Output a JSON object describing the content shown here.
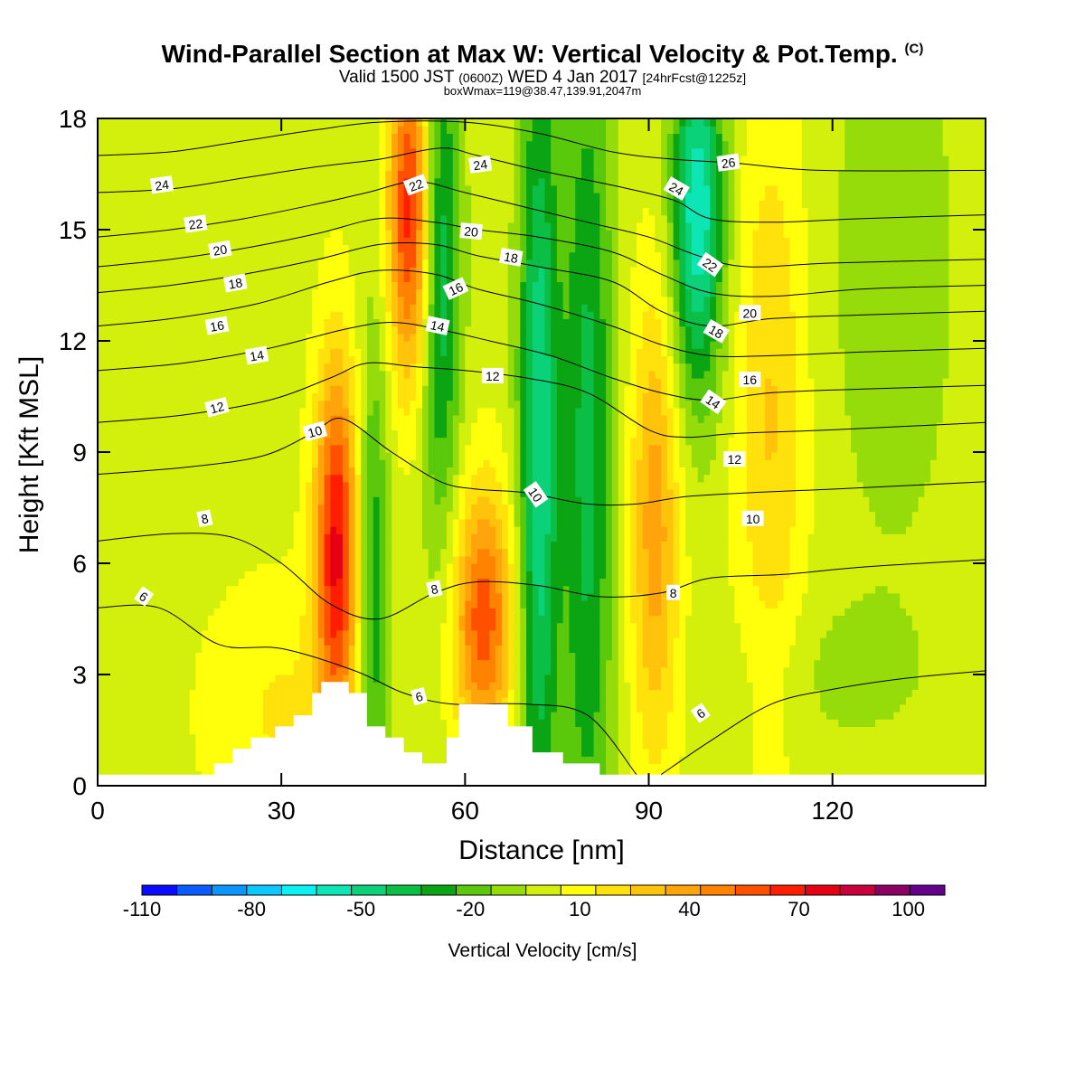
{
  "header": {
    "title": "Wind-Parallel Section at Max W: Vertical Velocity & Pot.Temp.",
    "title_units": "(C)",
    "valid_pre": "Valid 1500 JST",
    "valid_z": "(0600Z)",
    "valid_post": "WED 4 Jan 2017",
    "forecast": "[24hrFcst@1225z]",
    "box_info": "boxWmax=119@38.47,139.91,2047m"
  },
  "chart_data": {
    "type": "heatmap",
    "xlabel": "Distance [nm]",
    "ylabel": "Height [Kft MSL]",
    "xlim": [
      0,
      145
    ],
    "ylim": [
      0,
      18
    ],
    "x_ticks": [
      0,
      30,
      60,
      90,
      120
    ],
    "y_ticks": [
      0,
      3,
      6,
      9,
      12,
      15,
      18
    ],
    "x_tick_labels": [
      "0",
      "30",
      "60",
      "90",
      "120"
    ],
    "y_tick_labels": [
      "0",
      "3",
      "6",
      "9",
      "12",
      "15",
      "18"
    ],
    "colorbar": {
      "title": "Vertical Velocity [cm/s]",
      "boundaries": [
        -110,
        -100,
        -90,
        -80,
        -70,
        -60,
        -50,
        -40,
        -30,
        -20,
        -10,
        0,
        10,
        20,
        30,
        40,
        50,
        60,
        70,
        80,
        90,
        100,
        110
      ],
      "colors": [
        "#0b0bff",
        "#0b5cff",
        "#0b96ff",
        "#0bc8ff",
        "#0bf0f0",
        "#0be6b4",
        "#0bd278",
        "#0bbe46",
        "#0ba514",
        "#5ac80b",
        "#96dc0b",
        "#d2f00b",
        "#ffff0b",
        "#ffe10b",
        "#ffc30b",
        "#ffa50b",
        "#ff8200",
        "#ff5000",
        "#ff1e00",
        "#e60014",
        "#c8003c",
        "#8c0064",
        "#64008c"
      ],
      "tick_values": [
        -110,
        -80,
        -50,
        -20,
        10,
        40,
        70,
        100
      ],
      "tick_labels": [
        "-110",
        "-80",
        "-50",
        "-20",
        "10",
        "40",
        "70",
        "100"
      ]
    },
    "w_features": [
      {
        "x": 39,
        "y": 6.5,
        "sx": 2.5,
        "sy": 3.5,
        "w": 75
      },
      {
        "x": 51,
        "y": 15.5,
        "sx": 2.5,
        "sy": 3.2,
        "w": 70
      },
      {
        "x": 63,
        "y": 4.5,
        "sx": 3.5,
        "sy": 2.5,
        "w": 60
      },
      {
        "x": 91,
        "y": 7,
        "sx": 2.8,
        "sy": 4.5,
        "w": 40
      },
      {
        "x": 110,
        "y": 10,
        "sx": 4,
        "sy": 6,
        "w": 25
      },
      {
        "x": 30,
        "y": 2,
        "sx": 9,
        "sy": 2.5,
        "w": 15
      },
      {
        "x": 45,
        "y": 5,
        "sx": 1.8,
        "sy": 5,
        "w": -35
      },
      {
        "x": 56,
        "y": 14,
        "sx": 2.3,
        "sy": 5,
        "w": -45
      },
      {
        "x": 72,
        "y": 9,
        "sx": 2.3,
        "sy": 8,
        "w": -55
      },
      {
        "x": 80,
        "y": 9,
        "sx": 3,
        "sy": 9,
        "w": -40
      },
      {
        "x": 98,
        "y": 15.5,
        "sx": 3,
        "sy": 3.5,
        "w": -65
      },
      {
        "x": 130,
        "y": 14,
        "sx": 8,
        "sy": 6,
        "w": -12
      },
      {
        "x": 120,
        "y": 3,
        "sx": 12,
        "sy": 1.5,
        "w": -8
      }
    ],
    "terrain": [
      [
        0,
        0.3
      ],
      [
        19,
        0.3
      ],
      [
        19,
        0.6
      ],
      [
        22,
        0.6
      ],
      [
        22,
        1.0
      ],
      [
        25,
        1.0
      ],
      [
        25,
        1.3
      ],
      [
        29,
        1.3
      ],
      [
        29,
        1.6
      ],
      [
        32,
        1.6
      ],
      [
        32,
        1.9
      ],
      [
        35,
        1.9
      ],
      [
        35,
        2.5
      ],
      [
        36.5,
        2.5
      ],
      [
        36.5,
        2.8
      ],
      [
        41,
        2.8
      ],
      [
        41,
        2.5
      ],
      [
        44,
        2.5
      ],
      [
        44,
        1.6
      ],
      [
        47,
        1.6
      ],
      [
        47,
        1.3
      ],
      [
        50,
        1.3
      ],
      [
        50,
        0.9
      ],
      [
        53,
        0.9
      ],
      [
        53,
        0.6
      ],
      [
        57,
        0.6
      ],
      [
        57,
        1.3
      ],
      [
        59,
        1.3
      ],
      [
        59,
        2.2
      ],
      [
        67,
        2.2
      ],
      [
        67,
        1.6
      ],
      [
        71,
        1.6
      ],
      [
        71,
        0.9
      ],
      [
        76,
        0.9
      ],
      [
        76,
        0.6
      ],
      [
        82,
        0.6
      ],
      [
        82,
        0.3
      ],
      [
        145,
        0.3
      ]
    ],
    "theta_contours": [
      {
        "value": 6,
        "pts": [
          [
            0,
            4.8
          ],
          [
            10,
            4.8
          ],
          [
            20,
            3.8
          ],
          [
            30,
            3.7
          ],
          [
            42,
            3.1
          ],
          [
            50,
            2.5
          ],
          [
            58,
            2.2
          ],
          [
            70,
            2.2
          ],
          [
            80,
            1.9
          ],
          [
            88,
            0.3
          ]
        ]
      },
      {
        "value": 6,
        "pts": [
          [
            92,
            0.3
          ],
          [
            100,
            1.2
          ],
          [
            110,
            2.2
          ],
          [
            120,
            2.6
          ],
          [
            132,
            2.9
          ],
          [
            145,
            3.1
          ]
        ]
      },
      {
        "value": 8,
        "pts": [
          [
            0,
            6.6
          ],
          [
            12,
            6.8
          ],
          [
            22,
            6.7
          ],
          [
            30,
            6.0
          ],
          [
            38,
            4.9
          ],
          [
            46,
            4.5
          ],
          [
            55,
            5.2
          ],
          [
            62,
            5.5
          ],
          [
            72,
            5.4
          ],
          [
            82,
            5.1
          ],
          [
            92,
            5.2
          ],
          [
            100,
            5.6
          ],
          [
            112,
            5.7
          ],
          [
            125,
            5.9
          ],
          [
            145,
            6.1
          ]
        ]
      },
      {
        "value": 10,
        "pts": [
          [
            0,
            8.4
          ],
          [
            15,
            8.6
          ],
          [
            27,
            8.9
          ],
          [
            35,
            9.5
          ],
          [
            40,
            9.9
          ],
          [
            48,
            9.0
          ],
          [
            56,
            8.2
          ],
          [
            62,
            8.0
          ],
          [
            70,
            7.9
          ],
          [
            80,
            7.6
          ],
          [
            88,
            7.6
          ],
          [
            96,
            7.8
          ],
          [
            106,
            7.9
          ],
          [
            120,
            8.0
          ],
          [
            145,
            8.2
          ]
        ]
      },
      {
        "value": 12,
        "pts": [
          [
            0,
            9.8
          ],
          [
            14,
            10.0
          ],
          [
            28,
            10.4
          ],
          [
            38,
            11.0
          ],
          [
            44,
            11.4
          ],
          [
            52,
            11.3
          ],
          [
            60,
            11.2
          ],
          [
            70,
            11.0
          ],
          [
            80,
            10.6
          ],
          [
            90,
            9.6
          ],
          [
            96,
            9.4
          ],
          [
            104,
            9.5
          ],
          [
            120,
            9.6
          ],
          [
            145,
            9.8
          ]
        ]
      },
      {
        "value": 14,
        "pts": [
          [
            0,
            11.2
          ],
          [
            14,
            11.4
          ],
          [
            28,
            11.8
          ],
          [
            40,
            12.3
          ],
          [
            48,
            12.5
          ],
          [
            56,
            12.3
          ],
          [
            64,
            12.0
          ],
          [
            74,
            11.6
          ],
          [
            84,
            11.0
          ],
          [
            92,
            10.6
          ],
          [
            100,
            10.4
          ],
          [
            110,
            10.6
          ],
          [
            125,
            10.7
          ],
          [
            145,
            10.8
          ]
        ]
      },
      {
        "value": 16,
        "pts": [
          [
            0,
            12.4
          ],
          [
            12,
            12.6
          ],
          [
            26,
            13.0
          ],
          [
            38,
            13.6
          ],
          [
            46,
            13.9
          ],
          [
            55,
            13.8
          ],
          [
            62,
            13.4
          ],
          [
            72,
            13.0
          ],
          [
            84,
            12.4
          ],
          [
            92,
            11.9
          ],
          [
            100,
            11.6
          ],
          [
            110,
            11.6
          ],
          [
            125,
            11.7
          ],
          [
            145,
            11.8
          ]
        ]
      },
      {
        "value": 18,
        "pts": [
          [
            0,
            13.3
          ],
          [
            12,
            13.5
          ],
          [
            24,
            13.8
          ],
          [
            36,
            14.2
          ],
          [
            46,
            14.6
          ],
          [
            55,
            14.6
          ],
          [
            62,
            14.3
          ],
          [
            72,
            14.0
          ],
          [
            84,
            13.6
          ],
          [
            92,
            12.8
          ],
          [
            100,
            12.4
          ],
          [
            110,
            12.6
          ],
          [
            125,
            12.7
          ],
          [
            145,
            12.8
          ]
        ]
      },
      {
        "value": 20,
        "pts": [
          [
            0,
            14.0
          ],
          [
            12,
            14.2
          ],
          [
            24,
            14.5
          ],
          [
            36,
            14.9
          ],
          [
            46,
            15.3
          ],
          [
            55,
            15.2
          ],
          [
            62,
            15.0
          ],
          [
            72,
            14.8
          ],
          [
            84,
            14.4
          ],
          [
            92,
            13.8
          ],
          [
            100,
            13.3
          ],
          [
            110,
            13.2
          ],
          [
            125,
            13.4
          ],
          [
            145,
            13.5
          ]
        ]
      },
      {
        "value": 22,
        "pts": [
          [
            0,
            14.8
          ],
          [
            12,
            15.0
          ],
          [
            24,
            15.3
          ],
          [
            36,
            15.7
          ],
          [
            44,
            16.0
          ],
          [
            52,
            16.3
          ],
          [
            60,
            16.0
          ],
          [
            70,
            15.6
          ],
          [
            80,
            15.2
          ],
          [
            90,
            14.8
          ],
          [
            98,
            14.3
          ],
          [
            106,
            14.0
          ],
          [
            120,
            14.1
          ],
          [
            145,
            14.2
          ]
        ]
      },
      {
        "value": 24,
        "pts": [
          [
            0,
            16.0
          ],
          [
            12,
            16.1
          ],
          [
            24,
            16.4
          ],
          [
            36,
            16.7
          ],
          [
            46,
            16.9
          ],
          [
            56,
            17.2
          ],
          [
            62,
            17.0
          ],
          [
            72,
            16.6
          ],
          [
            84,
            16.2
          ],
          [
            94,
            15.8
          ],
          [
            100,
            15.3
          ],
          [
            110,
            15.2
          ],
          [
            125,
            15.3
          ],
          [
            145,
            15.4
          ]
        ]
      },
      {
        "value": 26,
        "pts": [
          [
            0,
            17.0
          ],
          [
            12,
            17.1
          ],
          [
            24,
            17.4
          ],
          [
            36,
            17.7
          ],
          [
            46,
            17.9
          ],
          [
            60,
            17.9
          ],
          [
            72,
            17.6
          ],
          [
            84,
            17.1
          ],
          [
            94,
            16.9
          ],
          [
            104,
            16.8
          ],
          [
            118,
            16.6
          ],
          [
            145,
            16.6
          ]
        ]
      }
    ],
    "contour_labels": [
      {
        "text": "6",
        "x": 7.5,
        "y": 5.1,
        "rot": 35
      },
      {
        "text": "6",
        "x": 52.5,
        "y": 2.4,
        "rot": -15
      },
      {
        "text": "6",
        "x": 98.5,
        "y": 1.95,
        "rot": -35
      },
      {
        "text": "8",
        "x": 17.5,
        "y": 7.2,
        "rot": -12
      },
      {
        "text": "8",
        "x": 55,
        "y": 5.3,
        "rot": -12
      },
      {
        "text": "8",
        "x": 94,
        "y": 5.2,
        "rot": 0
      },
      {
        "text": "10",
        "x": 35.5,
        "y": 9.55,
        "rot": -15
      },
      {
        "text": "10",
        "x": 71.5,
        "y": 7.85,
        "rot": 55
      },
      {
        "text": "10",
        "x": 107,
        "y": 7.2,
        "rot": 0
      },
      {
        "text": "12",
        "x": 19.5,
        "y": 10.2,
        "rot": -15
      },
      {
        "text": "12",
        "x": 64.5,
        "y": 11.05,
        "rot": 0
      },
      {
        "text": "12",
        "x": 104,
        "y": 8.8,
        "rot": 0
      },
      {
        "text": "14",
        "x": 26,
        "y": 11.6,
        "rot": -10
      },
      {
        "text": "14",
        "x": 55.5,
        "y": 12.4,
        "rot": 12
      },
      {
        "text": "14",
        "x": 100.5,
        "y": 10.35,
        "rot": 35
      },
      {
        "text": "16",
        "x": 19.5,
        "y": 12.4,
        "rot": -10
      },
      {
        "text": "16",
        "x": 58.5,
        "y": 13.4,
        "rot": -25
      },
      {
        "text": "16",
        "x": 106.5,
        "y": 10.95,
        "rot": 0
      },
      {
        "text": "18",
        "x": 22.5,
        "y": 13.55,
        "rot": -10
      },
      {
        "text": "18",
        "x": 67.5,
        "y": 14.25,
        "rot": 10
      },
      {
        "text": "18",
        "x": 101,
        "y": 12.25,
        "rot": 30
      },
      {
        "text": "20",
        "x": 20,
        "y": 14.45,
        "rot": -10
      },
      {
        "text": "20",
        "x": 61,
        "y": 14.95,
        "rot": 5
      },
      {
        "text": "20",
        "x": 106.5,
        "y": 12.75,
        "rot": 0
      },
      {
        "text": "22",
        "x": 16,
        "y": 15.15,
        "rot": -8
      },
      {
        "text": "22",
        "x": 52,
        "y": 16.2,
        "rot": -20
      },
      {
        "text": "22",
        "x": 100,
        "y": 14.05,
        "rot": 35
      },
      {
        "text": "24",
        "x": 10.5,
        "y": 16.2,
        "rot": -8
      },
      {
        "text": "24",
        "x": 62.5,
        "y": 16.75,
        "rot": -8
      },
      {
        "text": "24",
        "x": 94.5,
        "y": 16.1,
        "rot": 30
      },
      {
        "text": "26",
        "x": 103,
        "y": 16.8,
        "rot": -8
      }
    ]
  }
}
